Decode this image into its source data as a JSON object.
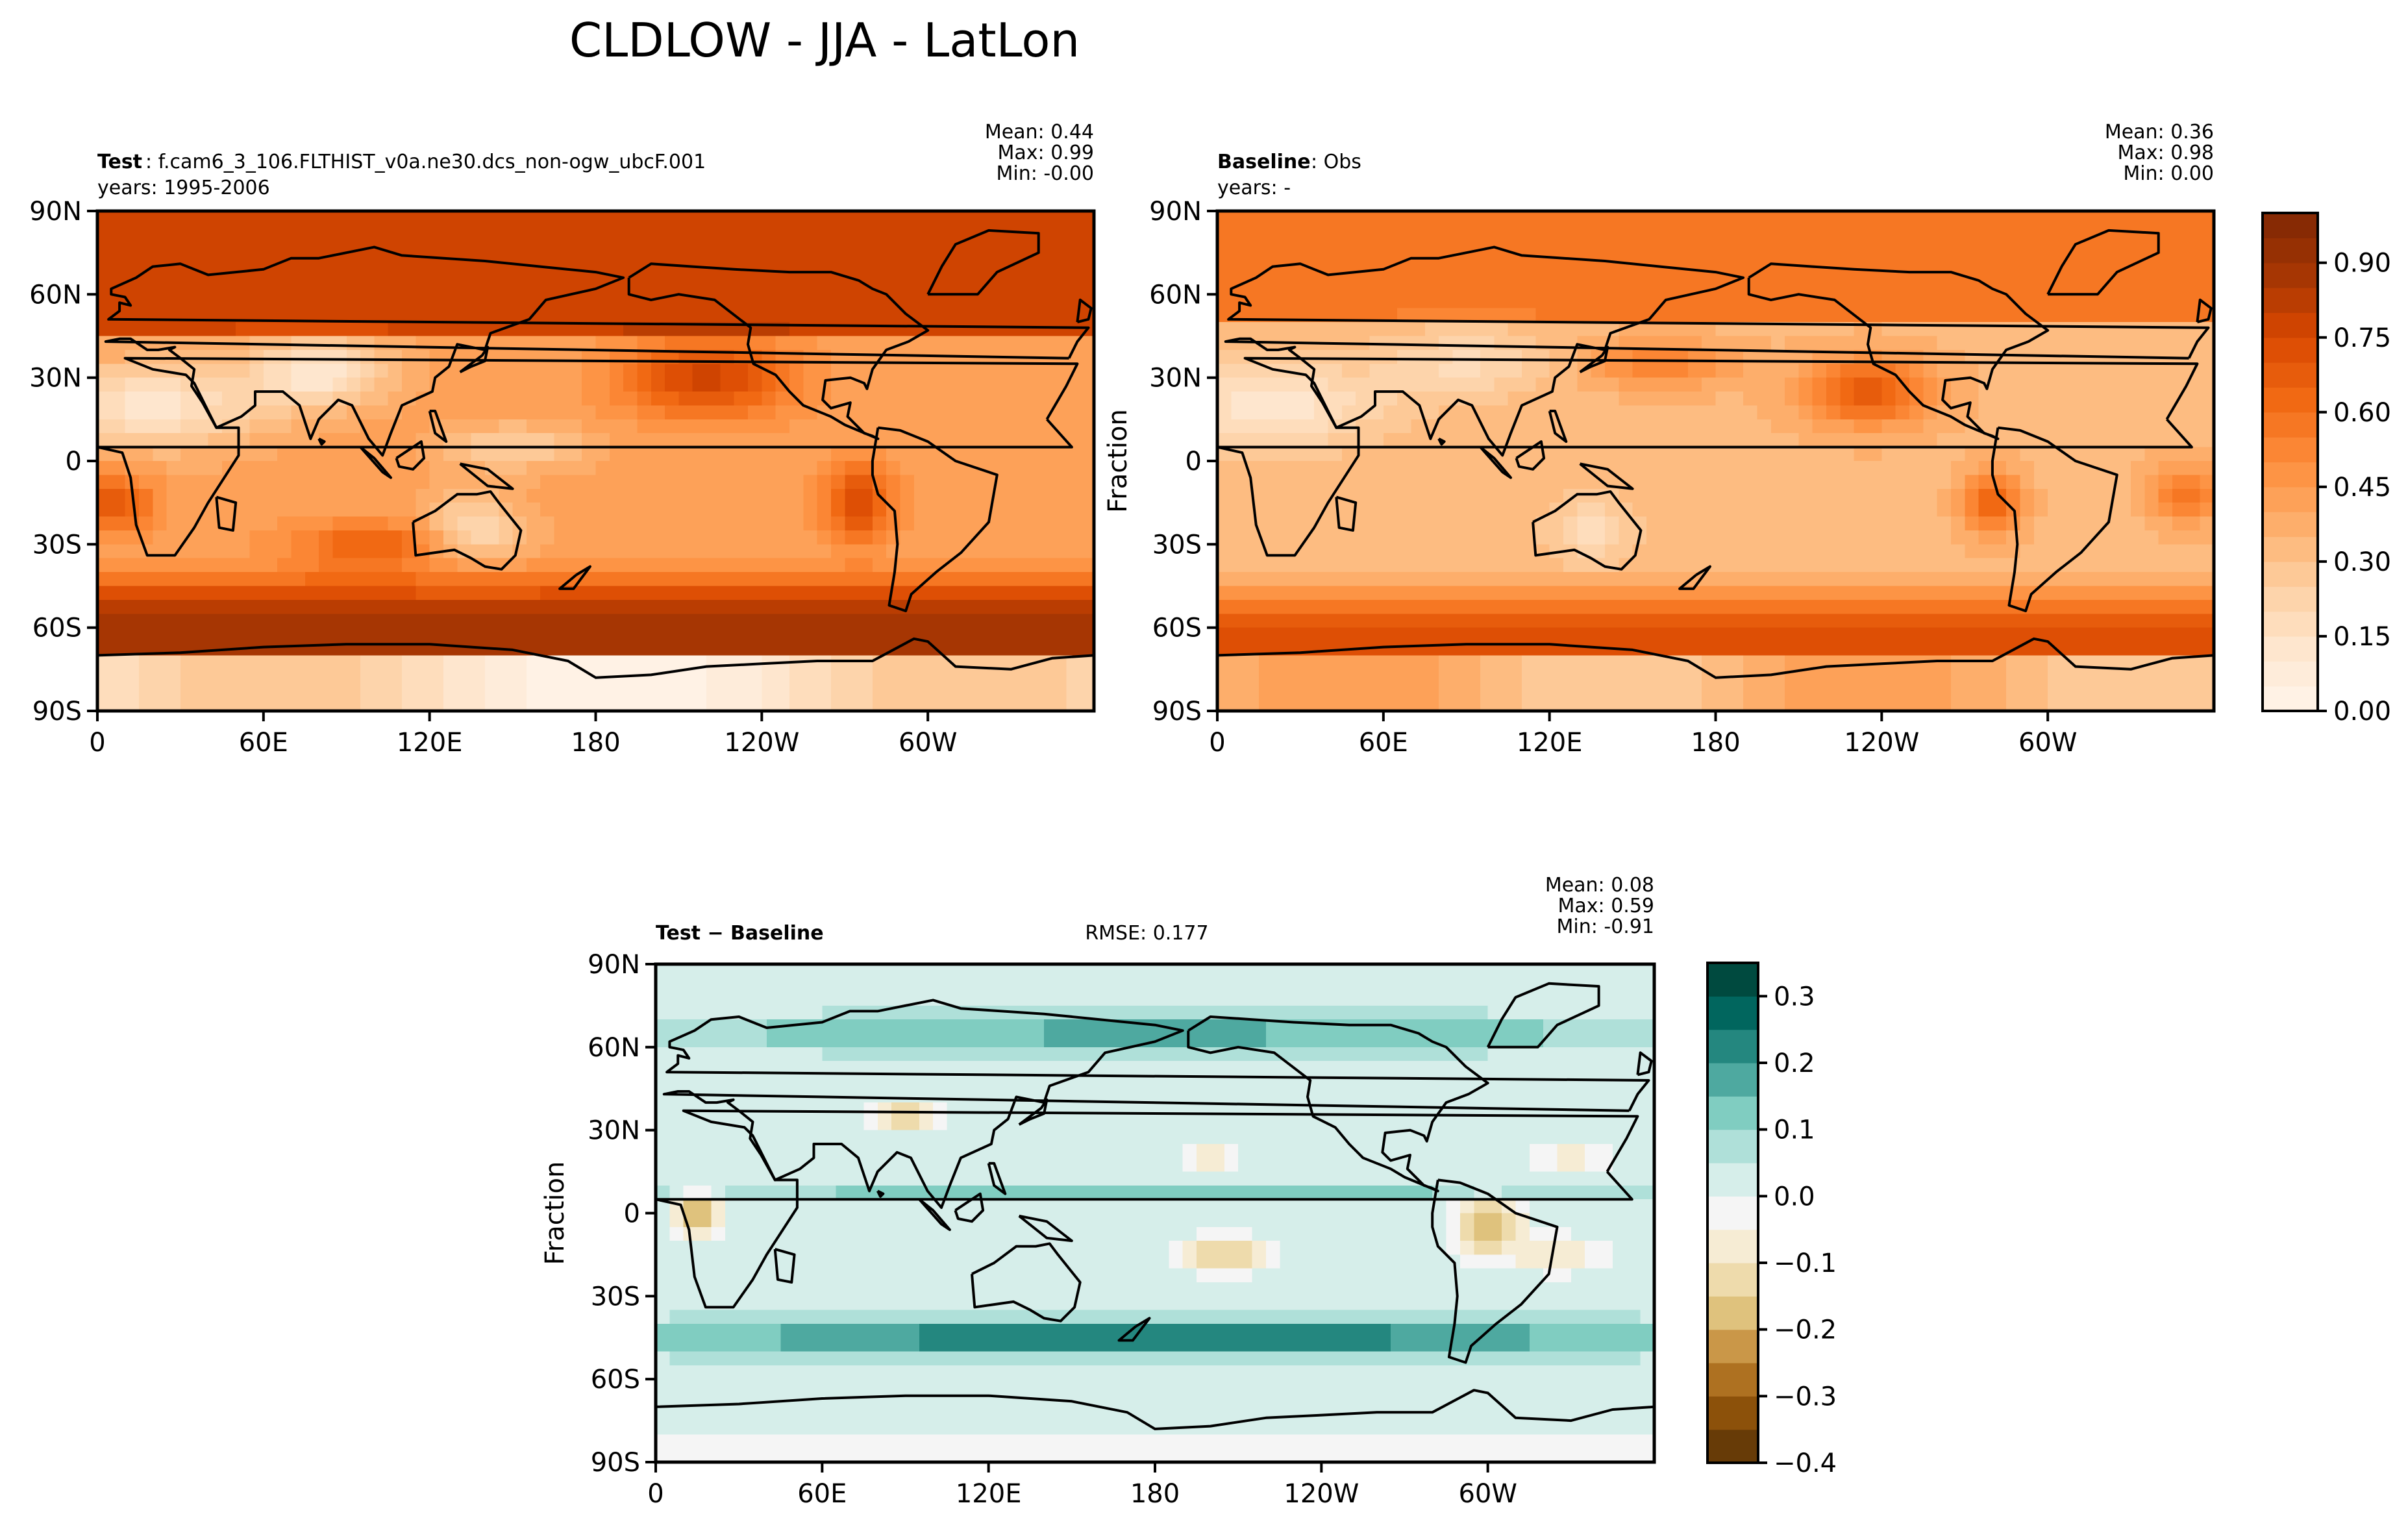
{
  "figure": {
    "title": "CLDLOW - JJA - LatLon"
  },
  "panels": [
    {
      "id": "test",
      "header_bold": "Test",
      "header_sep": ":",
      "header_text": "f.cam6_3_106.FLTHIST_v0a.ne30.dcs_non-ogw_ubcF.001",
      "subheader": "years: 1995-2006",
      "rmse": "",
      "stats": [
        "Mean:  0.44",
        "Max:  0.99",
        "Min: -0.00"
      ],
      "ylabel": ""
    },
    {
      "id": "baseline",
      "header_bold": "Baseline",
      "header_sep": ":",
      "header_text": "Obs",
      "subheader": "years: -",
      "rmse": "",
      "stats": [
        "Mean:  0.36",
        "Max:  0.98",
        "Min:  0.00"
      ],
      "ylabel": "Fraction"
    },
    {
      "id": "diff",
      "header_bold": "Test − Baseline",
      "header_sep": "",
      "header_text": "",
      "subheader": "",
      "rmse": "RMSE: 0.177",
      "stats": [
        "Mean:  0.08",
        "Max:  0.59",
        "Min: -0.91"
      ],
      "ylabel": "Fraction"
    }
  ],
  "chart_data": [
    {
      "type": "heatmap",
      "title": "Test : f.cam6_3_106.FLTHIST_v0a.ne30.dcs_non-ogw_ubcF.001",
      "subtitle": "years: 1995-2006",
      "xlabel": "",
      "ylabel": "",
      "x_ticks": [
        "0",
        "60E",
        "120E",
        "180",
        "120W",
        "60W"
      ],
      "y_ticks": [
        "90N",
        "60N",
        "30N",
        "0",
        "30S",
        "60S",
        "90S"
      ],
      "stats": {
        "mean": 0.44,
        "max": 0.99,
        "min": -0.0
      },
      "colormap": "Oranges",
      "zlim": [
        0,
        1
      ]
    },
    {
      "type": "heatmap",
      "title": "Baseline : Obs",
      "subtitle": "years: -",
      "xlabel": "",
      "ylabel": "Fraction",
      "x_ticks": [
        "0",
        "60E",
        "120E",
        "180",
        "120W",
        "60W"
      ],
      "y_ticks": [
        "90N",
        "60N",
        "30N",
        "0",
        "30S",
        "60S",
        "90S"
      ],
      "stats": {
        "mean": 0.36,
        "max": 0.98,
        "min": 0.0
      },
      "colormap": "Oranges",
      "zlim": [
        0,
        1
      ],
      "colorbar_ticks": [
        "0.00",
        "0.15",
        "0.30",
        "0.45",
        "0.60",
        "0.75",
        "0.90"
      ]
    },
    {
      "type": "heatmap",
      "title": "Test − Baseline",
      "annotation": "RMSE: 0.177",
      "xlabel": "",
      "ylabel": "Fraction",
      "x_ticks": [
        "0",
        "60E",
        "120E",
        "180",
        "120W",
        "60W"
      ],
      "y_ticks": [
        "90N",
        "60N",
        "30N",
        "0",
        "30S",
        "60S",
        "90S"
      ],
      "stats": {
        "mean": 0.08,
        "max": 0.59,
        "min": -0.91
      },
      "colormap": "BrBG",
      "zlim": [
        -0.4,
        0.35
      ],
      "colorbar_ticks": [
        "0.3",
        "0.2",
        "0.1",
        "0.0",
        "−0.1",
        "−0.2",
        "−0.3",
        "−0.4"
      ]
    }
  ],
  "colors": {
    "oranges": [
      "#fff5eb",
      "#fee6ce",
      "#fdd0a2",
      "#fdae6b",
      "#fd8d3c",
      "#f16913",
      "#d94801",
      "#a63603",
      "#7f2704"
    ],
    "brbg": [
      "#543005",
      "#8c510a",
      "#bf812d",
      "#dfc27d",
      "#f6e8c3",
      "#f5f5f5",
      "#c7eae5",
      "#80cdc1",
      "#35978f",
      "#01665e",
      "#003c30"
    ]
  }
}
